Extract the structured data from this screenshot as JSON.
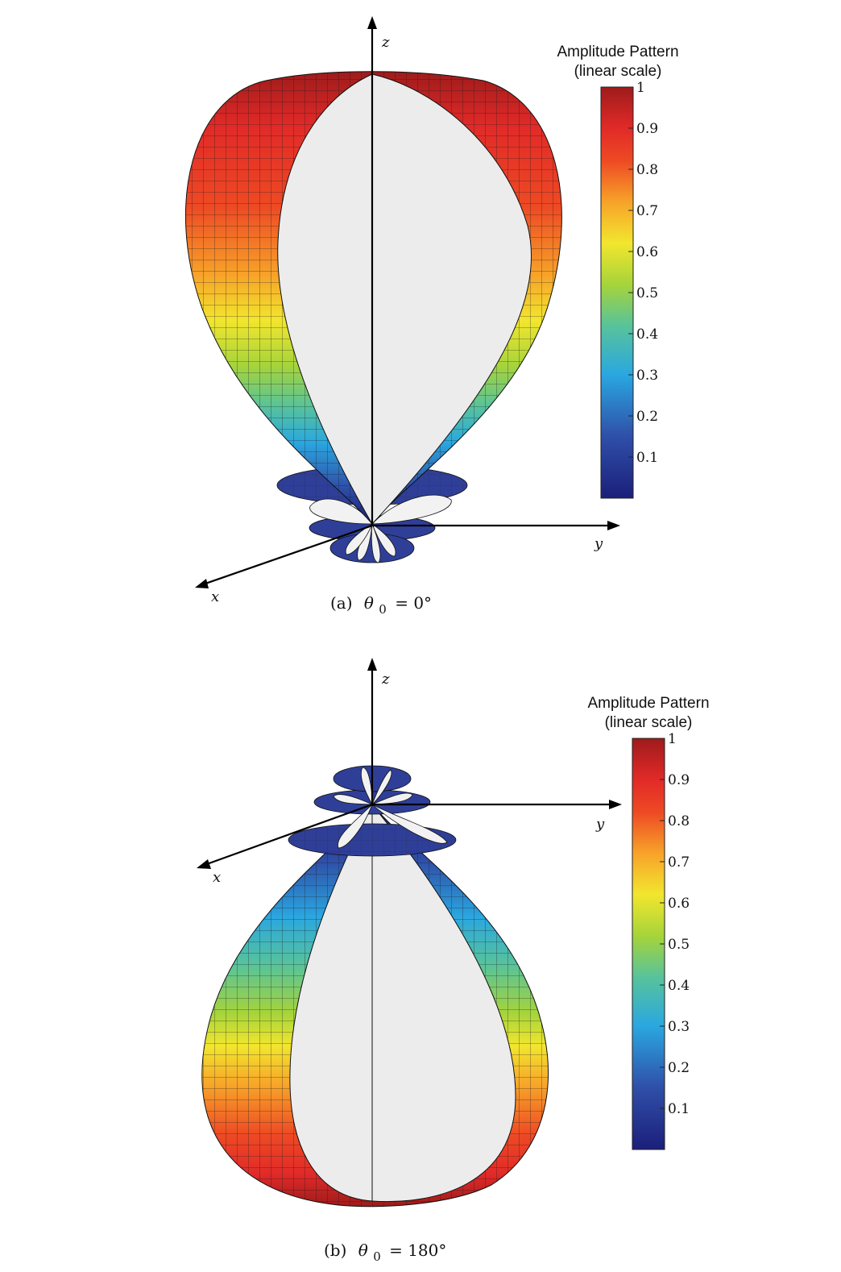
{
  "panels": [
    {
      "id": "a",
      "caption_prefix": "(a)",
      "caption_var": "θ",
      "caption_sub": "0",
      "caption_value": "= 0°",
      "orientation": "up",
      "axes": {
        "z": "z",
        "y": "y",
        "x": "x"
      },
      "colorbar": {
        "title_line1": "Amplitude Pattern",
        "title_line2": "(linear scale)",
        "ticks": [
          "1",
          "0.9",
          "0.8",
          "0.7",
          "0.6",
          "0.5",
          "0.4",
          "0.3",
          "0.2",
          "0.1"
        ]
      }
    },
    {
      "id": "b",
      "caption_prefix": "(b)",
      "caption_var": "θ",
      "caption_sub": "0",
      "caption_value": "= 180°",
      "orientation": "down",
      "axes": {
        "z": "z",
        "y": "y",
        "x": "x"
      },
      "colorbar": {
        "title_line1": "Amplitude Pattern",
        "title_line2": "(linear scale)",
        "ticks": [
          "1",
          "0.9",
          "0.8",
          "0.7",
          "0.6",
          "0.5",
          "0.4",
          "0.3",
          "0.2",
          "0.1"
        ]
      }
    }
  ],
  "colormap": [
    "#1b1f7a",
    "#2f4fa8",
    "#2aa7e0",
    "#58c39a",
    "#a6d43a",
    "#f2e62e",
    "#f7a329",
    "#ee4a24",
    "#e12a28",
    "#9e1b1b"
  ]
}
